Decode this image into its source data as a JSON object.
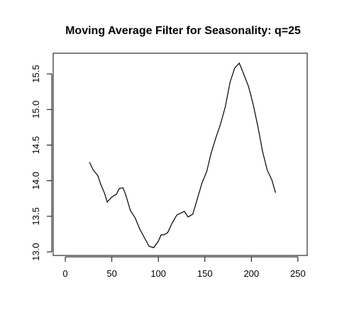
{
  "chart_data": {
    "type": "line",
    "title": "Moving Average Filter for Seasonality: q=25",
    "x": [
      26,
      30,
      35,
      38,
      42,
      45,
      50,
      55,
      58,
      62,
      65,
      70,
      75,
      80,
      85,
      90,
      95,
      100,
      103,
      106,
      110,
      115,
      120,
      125,
      128,
      132,
      137,
      142,
      147,
      152,
      157,
      162,
      167,
      172,
      177,
      182,
      187,
      192,
      197,
      202,
      207,
      212,
      217,
      222,
      226
    ],
    "series": [
      {
        "color": "#000000",
        "values": [
          14.26,
          14.15,
          14.07,
          13.95,
          13.83,
          13.7,
          13.77,
          13.81,
          13.89,
          13.9,
          13.8,
          13.58,
          13.48,
          13.32,
          13.2,
          13.08,
          13.06,
          13.15,
          13.24,
          13.24,
          13.27,
          13.41,
          13.52,
          13.55,
          13.57,
          13.49,
          13.53,
          13.75,
          13.97,
          14.13,
          14.4,
          14.61,
          14.8,
          15.04,
          15.38,
          15.58,
          15.65,
          15.49,
          15.32,
          15.07,
          14.76,
          14.41,
          14.15,
          14.01,
          13.83
        ]
      }
    ],
    "xlim": [
      -13,
      260
    ],
    "xticks": [
      0,
      50,
      100,
      150,
      200,
      250
    ],
    "ylim": [
      12.95,
      15.79
    ],
    "yticks": [
      {
        "value": 13,
        "label": "13.0"
      },
      {
        "value": 13.5,
        "label": "13.5"
      },
      {
        "value": 14,
        "label": "14.0"
      },
      {
        "value": 14.5,
        "label": "14.5"
      },
      {
        "value": 15,
        "label": "15.0"
      },
      {
        "value": 15.5,
        "label": "15.5"
      }
    ]
  }
}
